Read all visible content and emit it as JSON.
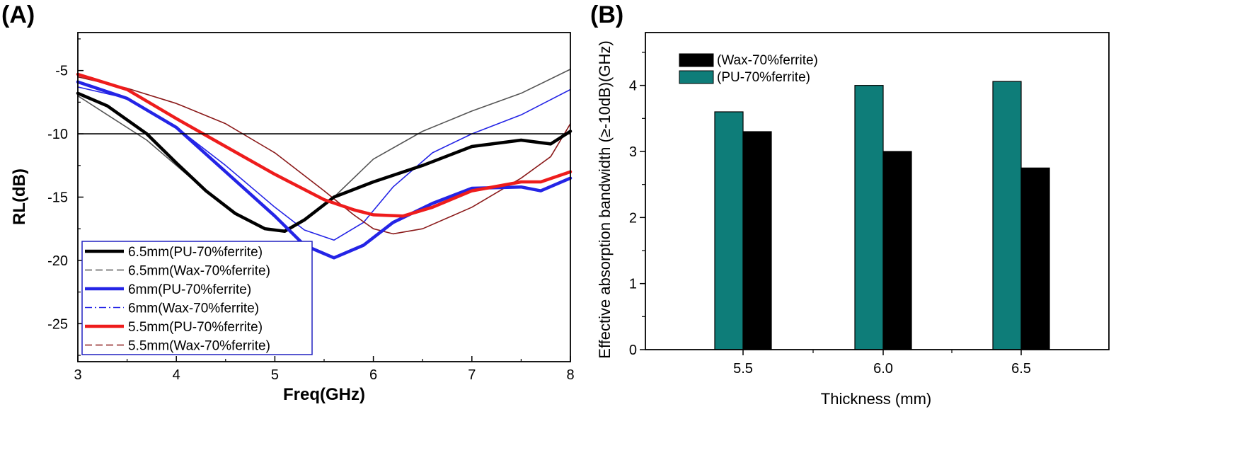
{
  "chart_data": [
    {
      "panel_label": "(A)",
      "type": "line",
      "xlabel": "Freq(GHz)",
      "ylabel": "RL(dB)",
      "xlim": [
        3,
        8
      ],
      "ylim": [
        -28,
        -2
      ],
      "xticks": [
        "3",
        "4",
        "5",
        "6",
        "7",
        "8"
      ],
      "yticks": [
        "-5",
        "-10",
        "-15",
        "-20",
        "-25"
      ],
      "reference_line": -10,
      "series": [
        {
          "name": "6.5mm(PU-70%ferrite)",
          "color": "#000000",
          "style": "solid-thick",
          "x": [
            3.0,
            3.3,
            3.7,
            4.0,
            4.3,
            4.6,
            4.9,
            5.1,
            5.3,
            5.6,
            6.0,
            6.5,
            7.0,
            7.5,
            7.8,
            8.0
          ],
          "y": [
            -6.8,
            -7.8,
            -10.0,
            -12.3,
            -14.5,
            -16.3,
            -17.5,
            -17.7,
            -16.8,
            -15.0,
            -13.8,
            -12.5,
            -11.0,
            -10.5,
            -10.8,
            -9.8
          ]
        },
        {
          "name": "6.5mm(Wax-70%ferrite)",
          "color": "#555555",
          "style": "dash-thin",
          "x": [
            3.0,
            3.3,
            3.7,
            4.0,
            4.3,
            4.6,
            4.9,
            5.1,
            5.3,
            5.6,
            6.0,
            6.5,
            7.0,
            7.5,
            8.0
          ],
          "y": [
            -7.0,
            -8.5,
            -10.5,
            -12.5,
            -14.5,
            -16.3,
            -17.5,
            -17.6,
            -16.7,
            -15.0,
            -12.0,
            -9.8,
            -8.2,
            -6.8,
            -4.9
          ]
        },
        {
          "name": "6mm(PU-70%ferrite)",
          "color": "#2424e6",
          "style": "solid-thick",
          "x": [
            3.0,
            3.5,
            4.0,
            4.5,
            5.0,
            5.3,
            5.6,
            5.9,
            6.2,
            6.6,
            7.0,
            7.5,
            7.7,
            8.0
          ],
          "y": [
            -5.9,
            -7.2,
            -9.5,
            -13.0,
            -16.5,
            -18.8,
            -19.8,
            -18.8,
            -17.0,
            -15.5,
            -14.3,
            -14.2,
            -14.5,
            -13.5
          ]
        },
        {
          "name": "6mm(Wax-70%ferrite)",
          "color": "#2424e6",
          "style": "dashdot-thin",
          "x": [
            3.0,
            3.5,
            4.0,
            4.5,
            5.0,
            5.3,
            5.6,
            5.9,
            6.2,
            6.6,
            7.0,
            7.5,
            8.0
          ],
          "y": [
            -6.3,
            -7.2,
            -9.5,
            -12.5,
            -15.8,
            -17.6,
            -18.4,
            -17.0,
            -14.2,
            -11.5,
            -10.0,
            -8.5,
            -6.5
          ]
        },
        {
          "name": "5.5mm(PU-70%ferrite)",
          "color": "#ee1c1c",
          "style": "solid-thick",
          "x": [
            3.0,
            3.5,
            4.0,
            4.5,
            5.0,
            5.5,
            5.8,
            6.0,
            6.3,
            6.6,
            7.0,
            7.5,
            7.7,
            8.0
          ],
          "y": [
            -5.3,
            -6.5,
            -8.8,
            -11.0,
            -13.2,
            -15.2,
            -16.0,
            -16.4,
            -16.5,
            -15.8,
            -14.5,
            -13.8,
            -13.8,
            -13.0
          ]
        },
        {
          "name": "5.5mm(Wax-70%ferrite)",
          "color": "#8b1a1a",
          "style": "dash-thin",
          "x": [
            3.0,
            3.5,
            4.0,
            4.5,
            5.0,
            5.5,
            5.8,
            6.0,
            6.2,
            6.5,
            7.0,
            7.5,
            7.8,
            8.0
          ],
          "y": [
            -5.5,
            -6.4,
            -7.6,
            -9.2,
            -11.5,
            -14.5,
            -16.4,
            -17.5,
            -17.9,
            -17.5,
            -15.8,
            -13.5,
            -11.8,
            -9.2
          ]
        }
      ]
    },
    {
      "panel_label": "(B)",
      "type": "bar",
      "categories": [
        "5.5",
        "6.0",
        "6.5"
      ],
      "xlabel": "Thickness (mm)",
      "ylabel": "Effective absorption bandwidth (≥-10dB)(GHz)",
      "ylim": [
        0,
        4.8
      ],
      "yticks": [
        "0",
        "1",
        "2",
        "3",
        "4"
      ],
      "series": [
        {
          "name": "(Wax-70%ferrite)",
          "color": "#000000",
          "values": [
            3.3,
            3.0,
            2.75
          ]
        },
        {
          "name": "(PU-70%ferrite)",
          "color": "#0e7d79",
          "values": [
            3.6,
            4.0,
            4.06
          ]
        }
      ]
    }
  ]
}
